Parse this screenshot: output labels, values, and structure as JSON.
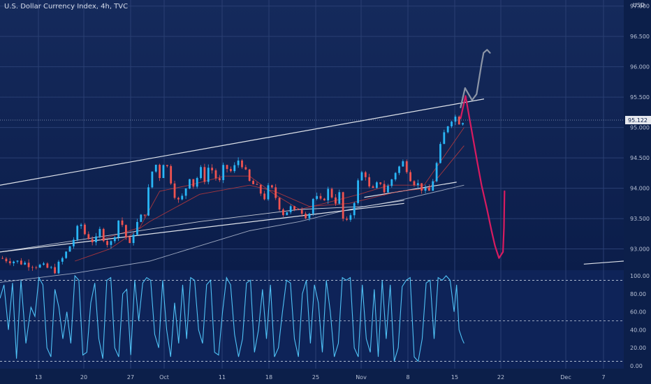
{
  "chart_data": [
    {
      "type": "candlestick",
      "title": "U.S. Dollar Currency Index, 4h, TVC",
      "currency_label": "USD",
      "last_price": 95.122,
      "ylim": [
        92.65,
        97.1
      ],
      "y_ticks": [
        "97.000",
        "96.500",
        "96.000",
        "95.500",
        "95.000",
        "94.500",
        "94.000",
        "93.500",
        "93.000"
      ],
      "x_ticks": [
        "13",
        "20",
        "27",
        "Oct",
        "11",
        "18",
        "25",
        "Nov",
        "8",
        "15",
        "22",
        "Dec",
        "7"
      ],
      "price_path": [
        [
          0,
          92.85
        ],
        [
          4,
          92.78
        ],
        [
          8,
          92.72
        ],
        [
          11,
          92.65
        ],
        [
          13,
          92.9
        ],
        [
          15,
          93.2
        ],
        [
          16,
          93.45
        ],
        [
          17,
          93.25
        ],
        [
          19,
          93.1
        ],
        [
          20,
          93.3
        ],
        [
          21,
          93.15
        ],
        [
          22,
          93.05
        ],
        [
          23,
          93.25
        ],
        [
          24,
          93.55
        ],
        [
          25,
          93.25
        ],
        [
          26,
          93.05
        ],
        [
          27,
          93.35
        ],
        [
          28,
          93.5
        ],
        [
          29,
          93.6
        ],
        [
          30,
          94.1
        ],
        [
          31,
          94.45
        ],
        [
          32,
          94.2
        ],
        [
          33,
          94.5
        ],
        [
          34,
          94.2
        ],
        [
          35,
          93.9
        ],
        [
          36,
          93.75
        ],
        [
          37,
          93.95
        ],
        [
          38,
          94.2
        ],
        [
          39,
          94.0
        ],
        [
          40,
          94.35
        ],
        [
          41,
          94.15
        ],
        [
          42,
          94.4
        ],
        [
          43,
          94.2
        ],
        [
          44,
          94.1
        ],
        [
          45,
          94.4
        ],
        [
          46,
          94.25
        ],
        [
          47,
          94.35
        ],
        [
          48,
          94.5
        ],
        [
          49,
          94.3
        ],
        [
          50,
          94.1
        ],
        [
          51,
          94.05
        ],
        [
          52,
          93.95
        ],
        [
          53,
          93.85
        ],
        [
          54,
          94.05
        ],
        [
          55,
          93.9
        ],
        [
          56,
          93.7
        ],
        [
          57,
          93.55
        ],
        [
          58,
          93.7
        ],
        [
          59,
          93.6
        ],
        [
          60,
          93.7
        ],
        [
          61,
          93.55
        ],
        [
          62,
          93.6
        ],
        [
          63,
          93.9
        ],
        [
          64,
          93.75
        ],
        [
          65,
          93.85
        ],
        [
          66,
          94.0
        ],
        [
          67,
          93.75
        ],
        [
          68,
          93.9
        ],
        [
          69,
          93.35
        ],
        [
          70,
          93.5
        ],
        [
          71,
          93.8
        ],
        [
          72,
          94.2
        ],
        [
          73,
          94.3
        ],
        [
          74,
          94.0
        ],
        [
          75,
          93.95
        ],
        [
          76,
          94.15
        ],
        [
          77,
          93.95
        ],
        [
          78,
          94.05
        ],
        [
          79,
          94.25
        ],
        [
          80,
          94.35
        ],
        [
          81,
          94.45
        ],
        [
          82,
          94.2
        ],
        [
          83,
          94.1
        ],
        [
          84,
          94.05
        ],
        [
          85,
          93.95
        ],
        [
          86,
          93.95
        ],
        [
          87,
          94.2
        ],
        [
          88,
          94.6
        ],
        [
          89,
          94.9
        ],
        [
          90,
          95.1
        ],
        [
          91,
          95.2
        ],
        [
          92,
          95.1
        ],
        [
          93,
          95.12
        ]
      ],
      "series": [
        {
          "type": "moving-average",
          "color": "#b8c2d6",
          "path": [
            [
              0,
              92.45
            ],
            [
              15,
              92.6
            ],
            [
              30,
              92.8
            ],
            [
              40,
              93.05
            ],
            [
              50,
              93.3
            ],
            [
              60,
              93.45
            ],
            [
              70,
              93.65
            ],
            [
              80,
              93.8
            ],
            [
              93,
              94.05
            ]
          ]
        },
        {
          "type": "moving-average",
          "color": "#c0393b",
          "path": [
            [
              15,
              92.8
            ],
            [
              22,
              93.0
            ],
            [
              30,
              93.45
            ],
            [
              40,
              93.9
            ],
            [
              50,
              94.05
            ],
            [
              55,
              93.95
            ],
            [
              62,
              93.7
            ],
            [
              70,
              93.75
            ],
            [
              80,
              93.95
            ],
            [
              86,
              94.0
            ],
            [
              93,
              94.7
            ]
          ]
        },
        {
          "type": "moving-average",
          "color": "#c0393b",
          "path": [
            [
              20,
              93.15
            ],
            [
              28,
              93.35
            ],
            [
              32,
              93.95
            ],
            [
              38,
              94.05
            ],
            [
              45,
              94.2
            ],
            [
              50,
              94.2
            ],
            [
              55,
              93.9
            ],
            [
              60,
              93.65
            ],
            [
              65,
              93.75
            ],
            [
              72,
              93.9
            ],
            [
              78,
              94.05
            ],
            [
              85,
              94.05
            ],
            [
              93,
              95.0
            ]
          ]
        },
        {
          "type": "moving-average",
          "color": "#e8eaee",
          "path": [
            [
              0,
              92.95
            ],
            [
              20,
              93.2
            ],
            [
              40,
              93.45
            ],
            [
              60,
              93.65
            ],
            [
              73,
              93.7
            ],
            [
              81,
              93.8
            ]
          ]
        }
      ],
      "trendlines": [
        {
          "name": "upper-channel",
          "from": [
            0,
            94.05
          ],
          "to": [
            97,
            95.47
          ]
        },
        {
          "name": "lower-channel",
          "from": [
            0,
            92.95
          ],
          "to": [
            81,
            93.75
          ]
        },
        {
          "name": "short-support",
          "from": [
            73,
            93.85
          ],
          "to": [
            91.5,
            94.1
          ]
        },
        {
          "name": "far-support",
          "from": [
            117,
            92.75
          ],
          "to": [
            125,
            92.8
          ]
        }
      ],
      "drawings": [
        {
          "name": "bullish-projection",
          "color": "#8c95a6",
          "path": [
            [
              92.3,
              95.33
            ],
            [
              93.2,
              95.65
            ],
            [
              94.6,
              95.45
            ],
            [
              95.5,
              95.55
            ],
            [
              96.5,
              96.05
            ],
            [
              96.9,
              96.23
            ],
            [
              97.6,
              96.28
            ],
            [
              98.2,
              96.23
            ]
          ]
        },
        {
          "name": "bearish-projection",
          "color": "#d81b60",
          "path": [
            [
              92.3,
              95.15
            ],
            [
              93.3,
              95.52
            ],
            [
              94.3,
              95.05
            ],
            [
              95.6,
              94.45
            ],
            [
              96.5,
              94.05
            ],
            [
              97.6,
              93.65
            ],
            [
              98.5,
              93.3
            ],
            [
              99.2,
              93.05
            ],
            [
              100.0,
              92.85
            ],
            [
              100.8,
              92.95
            ],
            [
              101.0,
              93.35
            ],
            [
              101.1,
              93.95
            ]
          ]
        }
      ],
      "grid": true
    },
    {
      "type": "line",
      "name": "stochastic-oscillator",
      "ylim": [
        0,
        100
      ],
      "y_ticks": [
        "100.00",
        "80.00",
        "60.00",
        "40.00",
        "20.00",
        "0.00"
      ],
      "levels": [
        95,
        50,
        5
      ],
      "values": [
        [
          0,
          75
        ],
        [
          0.8,
          90
        ],
        [
          1.7,
          40
        ],
        [
          2.5,
          92
        ],
        [
          3.3,
          8
        ],
        [
          4.2,
          95
        ],
        [
          5.2,
          25
        ],
        [
          6.2,
          65
        ],
        [
          7.0,
          55
        ],
        [
          7.8,
          98
        ],
        [
          8.6,
          90
        ],
        [
          9.4,
          20
        ],
        [
          10.2,
          10
        ],
        [
          11.0,
          85
        ],
        [
          11.8,
          65
        ],
        [
          12.6,
          30
        ],
        [
          13.4,
          60
        ],
        [
          14.2,
          25
        ],
        [
          15.0,
          100
        ],
        [
          15.8,
          95
        ],
        [
          16.6,
          12
        ],
        [
          17.4,
          15
        ],
        [
          18.2,
          70
        ],
        [
          19.0,
          92
        ],
        [
          19.8,
          30
        ],
        [
          20.6,
          8
        ],
        [
          21.4,
          95
        ],
        [
          22.2,
          98
        ],
        [
          23.0,
          20
        ],
        [
          23.8,
          10
        ],
        [
          24.6,
          80
        ],
        [
          25.4,
          85
        ],
        [
          26.2,
          12
        ],
        [
          27.0,
          95
        ],
        [
          27.8,
          50
        ],
        [
          28.6,
          92
        ],
        [
          29.4,
          98
        ],
        [
          30.2,
          95
        ],
        [
          31.0,
          35
        ],
        [
          31.8,
          20
        ],
        [
          32.6,
          95
        ],
        [
          33.4,
          40
        ],
        [
          34.2,
          10
        ],
        [
          35.0,
          70
        ],
        [
          35.8,
          25
        ],
        [
          36.6,
          90
        ],
        [
          37.4,
          30
        ],
        [
          38.2,
          98
        ],
        [
          39.0,
          95
        ],
        [
          39.8,
          40
        ],
        [
          40.6,
          25
        ],
        [
          41.4,
          90
        ],
        [
          42.2,
          95
        ],
        [
          43.0,
          15
        ],
        [
          43.8,
          12
        ],
        [
          44.6,
          60
        ],
        [
          45.4,
          98
        ],
        [
          46.2,
          90
        ],
        [
          47.0,
          35
        ],
        [
          47.8,
          10
        ],
        [
          48.6,
          30
        ],
        [
          49.4,
          92
        ],
        [
          50.2,
          95
        ],
        [
          51.0,
          15
        ],
        [
          51.8,
          40
        ],
        [
          52.6,
          85
        ],
        [
          53.4,
          30
        ],
        [
          54.2,
          90
        ],
        [
          55.0,
          10
        ],
        [
          55.8,
          20
        ],
        [
          56.6,
          60
        ],
        [
          57.4,
          95
        ],
        [
          58.2,
          92
        ],
        [
          59.0,
          30
        ],
        [
          59.8,
          10
        ],
        [
          60.6,
          80
        ],
        [
          61.4,
          95
        ],
        [
          62.2,
          25
        ],
        [
          63.0,
          90
        ],
        [
          63.8,
          70
        ],
        [
          64.6,
          15
        ],
        [
          65.4,
          95
        ],
        [
          66.2,
          60
        ],
        [
          67.0,
          10
        ],
        [
          67.8,
          25
        ],
        [
          68.6,
          98
        ],
        [
          69.4,
          95
        ],
        [
          70.2,
          98
        ],
        [
          71.0,
          20
        ],
        [
          71.8,
          10
        ],
        [
          72.6,
          90
        ],
        [
          73.4,
          30
        ],
        [
          74.2,
          15
        ],
        [
          75.0,
          85
        ],
        [
          75.8,
          10
        ],
        [
          76.6,
          95
        ],
        [
          77.4,
          30
        ],
        [
          78.2,
          90
        ],
        [
          79.0,
          5
        ],
        [
          79.8,
          20
        ],
        [
          80.6,
          88
        ],
        [
          81.4,
          95
        ],
        [
          82.2,
          98
        ],
        [
          83.0,
          10
        ],
        [
          83.8,
          5
        ],
        [
          84.6,
          30
        ],
        [
          85.4,
          92
        ],
        [
          86.2,
          95
        ],
        [
          87.0,
          30
        ],
        [
          87.8,
          98
        ],
        [
          88.6,
          95
        ],
        [
          89.4,
          100
        ],
        [
          90.2,
          95
        ],
        [
          91.0,
          60
        ],
        [
          91.5,
          90
        ],
        [
          92.0,
          40
        ],
        [
          92.6,
          30
        ],
        [
          93.0,
          25
        ]
      ]
    }
  ]
}
